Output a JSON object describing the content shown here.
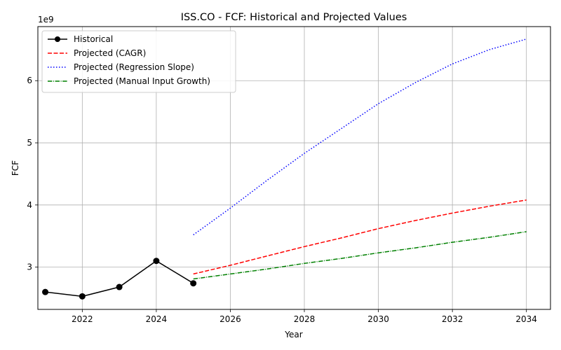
{
  "chart_data": {
    "type": "line",
    "title": "ISS.CO - FCF: Historical and Projected Values",
    "xlabel": "Year",
    "ylabel": "FCF",
    "y_offset_text": "1e9",
    "xlim": [
      2020.8,
      2034.65
    ],
    "ylim": [
      2.32,
      6.87
    ],
    "y_unit_multiplier": 1000000000,
    "x_ticks": [
      2022,
      2024,
      2026,
      2028,
      2030,
      2032,
      2034
    ],
    "x_tick_labels": [
      "2022",
      "2024",
      "2026",
      "2028",
      "2030",
      "2032",
      "2034"
    ],
    "y_ticks": [
      3,
      4,
      5,
      6
    ],
    "y_tick_labels": [
      "3",
      "4",
      "5",
      "6"
    ],
    "grid": true,
    "legend_position": "top-left",
    "series": [
      {
        "name": "Historical",
        "color": "#000000",
        "style": "solid",
        "marker": "circle",
        "x": [
          2021,
          2022,
          2023,
          2024,
          2025
        ],
        "y": [
          2.6,
          2.53,
          2.68,
          3.1,
          2.74
        ]
      },
      {
        "name": "Projected (CAGR)",
        "color": "#ff0000",
        "style": "dashed",
        "marker": "none",
        "x": [
          2025,
          2026,
          2027,
          2028,
          2029,
          2030,
          2031,
          2032,
          2033,
          2034
        ],
        "y": [
          2.89,
          3.03,
          3.18,
          3.33,
          3.47,
          3.62,
          3.75,
          3.87,
          3.98,
          4.08
        ]
      },
      {
        "name": "Projected (Regression Slope)",
        "color": "#0000ff",
        "style": "dotted",
        "marker": "none",
        "x": [
          2025,
          2026,
          2027,
          2028,
          2029,
          2030,
          2031,
          2032,
          2033,
          2034
        ],
        "y": [
          3.52,
          3.95,
          4.4,
          4.83,
          5.23,
          5.63,
          5.97,
          6.27,
          6.5,
          6.67
        ]
      },
      {
        "name": "Projected (Manual Input Growth)",
        "color": "#008000",
        "style": "dashdot",
        "marker": "none",
        "x": [
          2025,
          2026,
          2027,
          2028,
          2029,
          2030,
          2031,
          2032,
          2033,
          2034
        ],
        "y": [
          2.81,
          2.89,
          2.97,
          3.06,
          3.14,
          3.23,
          3.31,
          3.4,
          3.48,
          3.57
        ]
      }
    ]
  }
}
